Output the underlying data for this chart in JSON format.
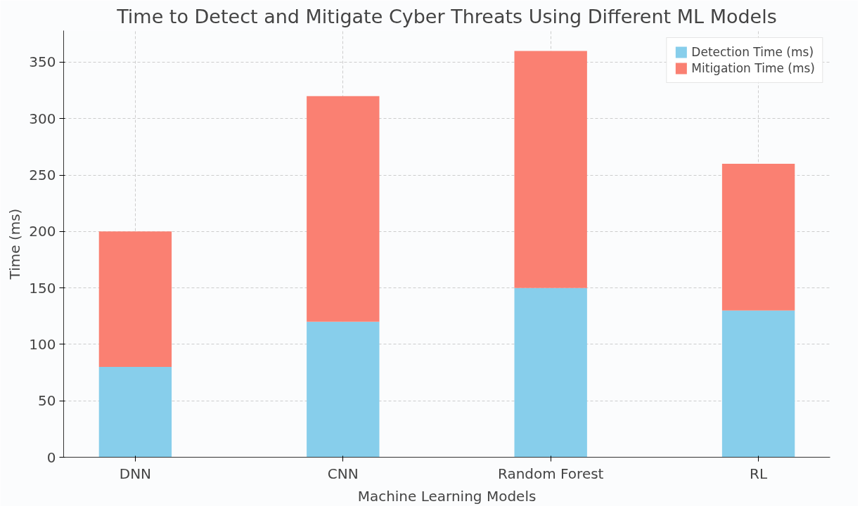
{
  "chart_data": {
    "type": "bar",
    "title": "Time to Detect and Mitigate Cyber Threats Using Different ML Models",
    "xlabel": "Machine Learning Models",
    "ylabel": "Time (ms)",
    "categories": [
      "DNN",
      "CNN",
      "Random Forest",
      "RL"
    ],
    "stacked": true,
    "series": [
      {
        "name": "Detection Time (ms)",
        "color": "#87ceeb",
        "values": [
          80,
          120,
          150,
          130
        ]
      },
      {
        "name": "Mitigation Time (ms)",
        "color": "#fa8072",
        "values": [
          120,
          200,
          210,
          130
        ]
      }
    ],
    "ylim": [
      0,
      378
    ],
    "yticks": [
      0,
      50,
      100,
      150,
      200,
      250,
      300,
      350
    ],
    "grid": true,
    "legend": "top right"
  }
}
